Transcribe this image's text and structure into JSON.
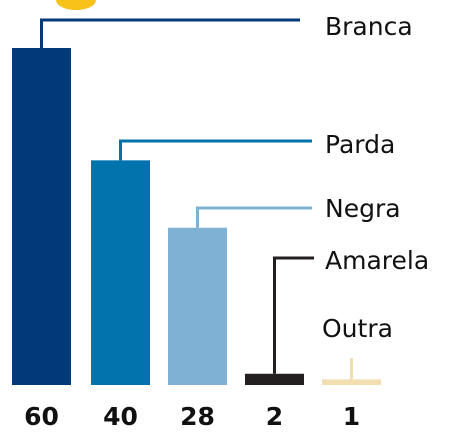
{
  "chart_data": {
    "type": "bar",
    "categories": [
      "Branca",
      "Parda",
      "Negra",
      "Amarela",
      "Outra"
    ],
    "values": [
      60,
      40,
      28,
      2,
      1
    ],
    "colors": [
      "#023a78",
      "#0273ac",
      "#7fb1d4",
      "#231f20",
      "#f2deb0"
    ]
  }
}
